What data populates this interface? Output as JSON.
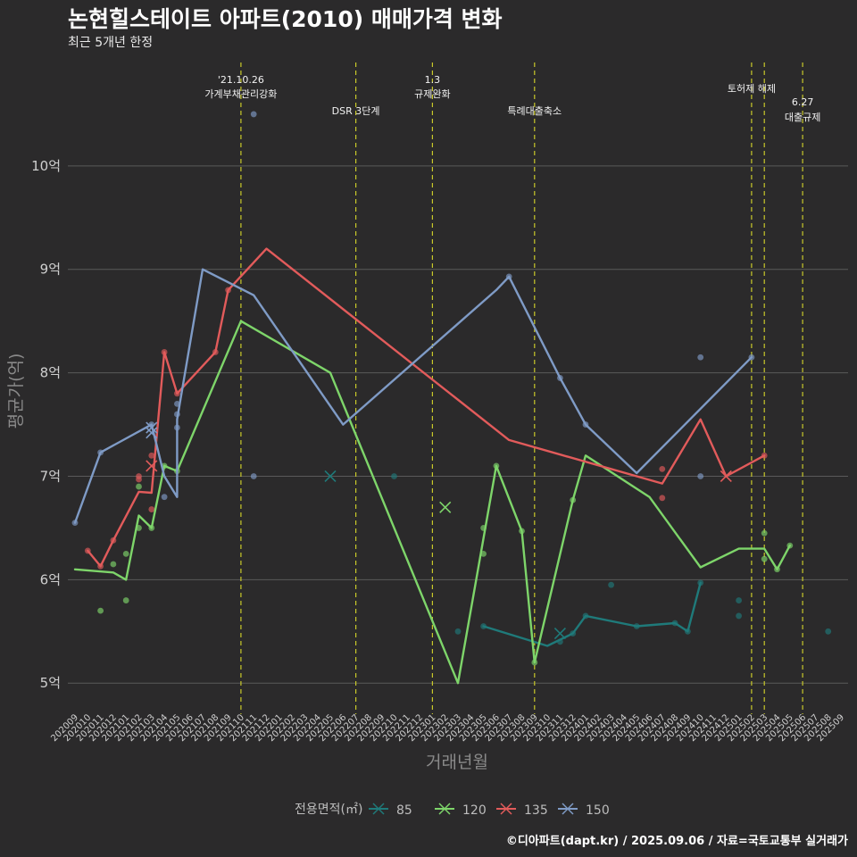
{
  "title": "논현힐스테이트 아파트(2010) 매매가격 변화",
  "subtitle": "최근 5개년 한정",
  "caption": "©디아파트(dapt.kr) / 2025.09.06 / 자료=국토교통부 실거래가",
  "chart_data": {
    "type": "line",
    "xlabel": "거래년월",
    "ylabel": "평균가(억)",
    "ylim": [
      4.7,
      11
    ],
    "yticks": [
      5,
      6,
      7,
      8,
      9,
      10
    ],
    "ytick_labels": [
      "5억",
      "6억",
      "7억",
      "8억",
      "9억",
      "10억"
    ],
    "x_categories": [
      "202009",
      "202010",
      "202011",
      "202012",
      "202101",
      "202102",
      "202103",
      "202104",
      "202105",
      "202106",
      "202107",
      "202108",
      "202109",
      "202110",
      "202111",
      "202112",
      "202201",
      "202202",
      "202203",
      "202204",
      "202205",
      "202206",
      "202207",
      "202208",
      "202209",
      "202210",
      "202211",
      "202212",
      "202301",
      "202302",
      "202303",
      "202304",
      "202305",
      "202306",
      "202307",
      "202308",
      "202309",
      "202310",
      "202311",
      "202312",
      "202401",
      "202402",
      "202403",
      "202404",
      "202405",
      "202406",
      "202407",
      "202408",
      "202409",
      "202410",
      "202411",
      "202412",
      "202501",
      "202502",
      "202503",
      "202504",
      "202505",
      "202506",
      "202507",
      "202508",
      "202509"
    ],
    "grid": true,
    "events": [
      {
        "x": "202110",
        "label": "'21.10.26\n가계부채관리강화"
      },
      {
        "x": "202207",
        "label": "DSR 3단계"
      },
      {
        "x": "202301",
        "label": "1.3\n규제완화"
      },
      {
        "x": "202309",
        "label": "특례대출축소"
      },
      {
        "x": "202502",
        "label": "토허제 해제"
      },
      {
        "x": "202503",
        "label": ""
      },
      {
        "x": "202506",
        "label": "6.27\n대출규제"
      }
    ],
    "legend": {
      "title": "전용면적(㎡)",
      "placement": "bottom"
    },
    "series": [
      {
        "name": "85",
        "color": "#1f7a7a",
        "line": [
          [
            "202305",
            5.55
          ],
          [
            "202310",
            5.36
          ],
          [
            "202312",
            5.48
          ],
          [
            "202401",
            5.65
          ],
          [
            "202405",
            5.55
          ],
          [
            "202408",
            5.58
          ],
          [
            "202409",
            5.5
          ],
          [
            "202410",
            5.97
          ]
        ],
        "points": [
          [
            "202303",
            5.5
          ],
          [
            "202305",
            5.55
          ],
          [
            "202311",
            5.4
          ],
          [
            "202312",
            5.48
          ],
          [
            "202401",
            5.65
          ],
          [
            "202403",
            5.95
          ],
          [
            "202405",
            5.55
          ],
          [
            "202408",
            5.58
          ],
          [
            "202409",
            5.5
          ],
          [
            "202410",
            5.97
          ],
          [
            "202501",
            5.8
          ],
          [
            "202501",
            5.65
          ],
          [
            "202508",
            5.5
          ],
          [
            "202210",
            7.0
          ]
        ],
        "x_marks": [
          [
            "202205",
            7.0
          ],
          [
            "202311",
            5.48
          ]
        ]
      },
      {
        "name": "120",
        "color": "#7ed56a",
        "line": [
          [
            "202009",
            6.1
          ],
          [
            "202012",
            6.07
          ],
          [
            "202101",
            6.0
          ],
          [
            "202102",
            6.62
          ],
          [
            "202103",
            6.5
          ],
          [
            "202104",
            7.1
          ],
          [
            "202105",
            7.05
          ],
          [
            "202110",
            8.5
          ],
          [
            "202205",
            8.0
          ],
          [
            "202303",
            5.0
          ],
          [
            "202306",
            7.1
          ],
          [
            "202308",
            6.47
          ],
          [
            "202309",
            5.2
          ],
          [
            "202312",
            6.77
          ],
          [
            "202401",
            7.2
          ],
          [
            "202406",
            6.8
          ],
          [
            "202410",
            6.12
          ],
          [
            "202501",
            6.3
          ],
          [
            "202503",
            6.3
          ],
          [
            "202504",
            6.1
          ],
          [
            "202505",
            6.33
          ]
        ],
        "points": [
          [
            "202011",
            5.7
          ],
          [
            "202012",
            6.15
          ],
          [
            "202101",
            6.25
          ],
          [
            "202101",
            5.8
          ],
          [
            "202102",
            6.9
          ],
          [
            "202102",
            6.5
          ],
          [
            "202103",
            6.5
          ],
          [
            "202104",
            7.1
          ],
          [
            "202105",
            7.05
          ],
          [
            "202305",
            6.5
          ],
          [
            "202305",
            6.25
          ],
          [
            "202306",
            7.1
          ],
          [
            "202308",
            6.47
          ],
          [
            "202309",
            5.2
          ],
          [
            "202312",
            6.77
          ],
          [
            "202503",
            6.45
          ],
          [
            "202503",
            6.2
          ],
          [
            "202504",
            6.1
          ],
          [
            "202505",
            6.33
          ]
        ],
        "x_marks": [
          [
            "202302",
            6.7
          ]
        ]
      },
      {
        "name": "135",
        "color": "#e25b5b",
        "line": [
          [
            "202010",
            6.28
          ],
          [
            "202011",
            6.13
          ],
          [
            "202012",
            6.38
          ],
          [
            "202102",
            6.85
          ],
          [
            "202103",
            6.84
          ],
          [
            "202104",
            8.2
          ],
          [
            "202105",
            7.8
          ],
          [
            "202108",
            8.2
          ],
          [
            "202109",
            8.8
          ],
          [
            "202112",
            9.2
          ],
          [
            "202307",
            7.35
          ],
          [
            "202407",
            6.93
          ],
          [
            "202410",
            7.55
          ],
          [
            "202412",
            7.0
          ],
          [
            "202503",
            7.2
          ]
        ],
        "points": [
          [
            "202010",
            6.28
          ],
          [
            "202011",
            6.13
          ],
          [
            "202012",
            6.38
          ],
          [
            "202102",
            7.0
          ],
          [
            "202102",
            6.97
          ],
          [
            "202103",
            6.68
          ],
          [
            "202103",
            7.2
          ],
          [
            "202104",
            8.2
          ],
          [
            "202105",
            7.8
          ],
          [
            "202108",
            8.2
          ],
          [
            "202109",
            8.8
          ],
          [
            "202407",
            7.07
          ],
          [
            "202407",
            6.79
          ],
          [
            "202503",
            7.2
          ]
        ],
        "x_marks": [
          [
            "202103",
            7.1
          ],
          [
            "202412",
            7.0
          ]
        ]
      },
      {
        "name": "150",
        "color": "#7f9bc6",
        "line": [
          [
            "202009",
            6.55
          ],
          [
            "202011",
            7.23
          ],
          [
            "202103",
            7.5
          ],
          [
            "202104",
            7.0
          ],
          [
            "202105",
            6.8
          ],
          [
            "202105",
            7.55
          ],
          [
            "202107",
            9.0
          ],
          [
            "202111",
            8.75
          ],
          [
            "202206",
            7.5
          ],
          [
            "202306",
            8.8
          ],
          [
            "202307",
            8.93
          ],
          [
            "202311",
            7.95
          ],
          [
            "202401",
            7.5
          ],
          [
            "202405",
            7.03
          ],
          [
            "202502",
            8.15
          ]
        ],
        "points": [
          [
            "202009",
            6.55
          ],
          [
            "202011",
            7.23
          ],
          [
            "202103",
            7.5
          ],
          [
            "202104",
            6.8
          ],
          [
            "202105",
            7.47
          ],
          [
            "202105",
            7.6
          ],
          [
            "202105",
            7.7
          ],
          [
            "202111",
            10.5
          ],
          [
            "202111",
            7.0
          ],
          [
            "202307",
            8.93
          ],
          [
            "202311",
            7.95
          ],
          [
            "202401",
            7.5
          ],
          [
            "202410",
            8.15
          ],
          [
            "202410",
            7.0
          ],
          [
            "202502",
            8.15
          ]
        ],
        "x_marks": [
          [
            "202103",
            7.47
          ],
          [
            "202103",
            7.42
          ]
        ]
      }
    ]
  }
}
